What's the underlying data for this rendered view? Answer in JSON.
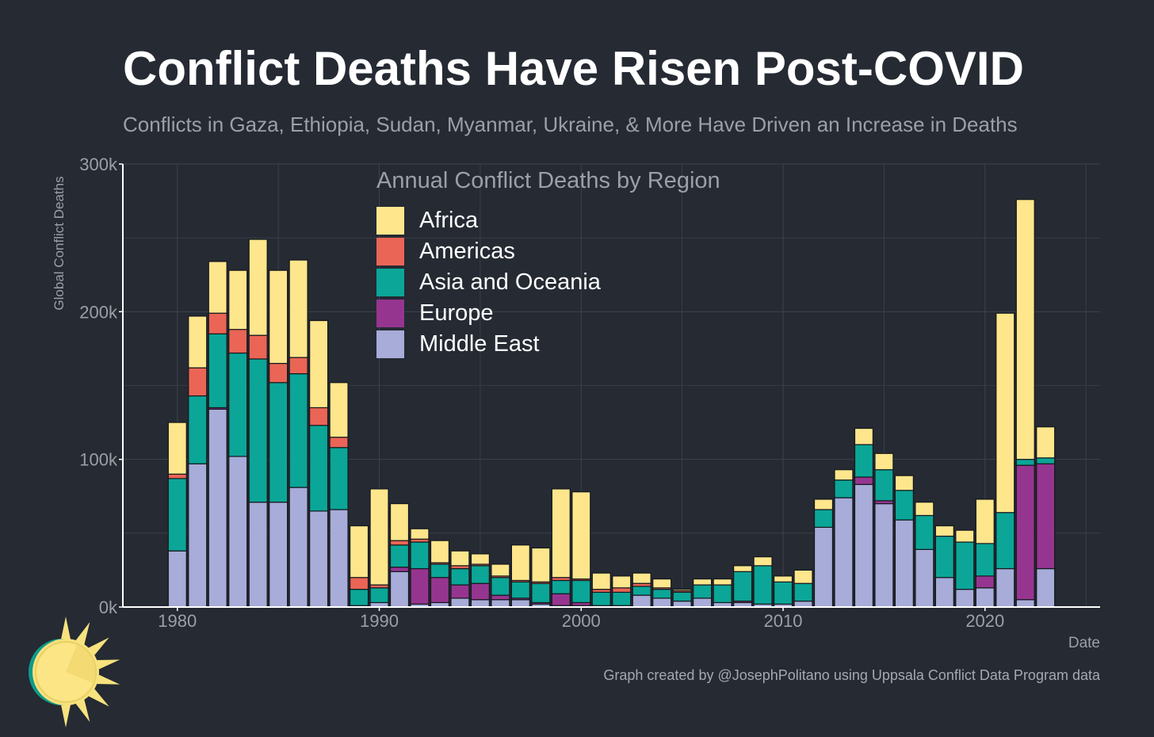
{
  "title": "Conflict Deaths Have Risen Post-COVID",
  "subtitle": "Conflicts in Gaza, Ethiopia, Sudan, Myanmar, Ukraine, & More Have Driven an Increase in Deaths",
  "credit": "Graph created by @JosephPolitano using Uppsala Conflict Data Program data",
  "colors": {
    "background": "#252a33",
    "grid": "#3d434d",
    "axis": "#ffffff",
    "tick_text": "#9ba0a8",
    "bar_outline": "#15181d",
    "logo_sun": "#f7e27e",
    "logo_ring": "#0e9b8a"
  },
  "logo_icon": "sun-icon",
  "chart_data": {
    "type": "bar",
    "stacked": true,
    "title": "Annual Conflict Deaths by Region",
    "xlabel": "Date",
    "ylabel": "Global Conflict Deaths",
    "xlim": [
      1977.3,
      2025.7
    ],
    "ylim": [
      0,
      300000
    ],
    "xticks": [
      1980,
      1990,
      2000,
      2010,
      2020
    ],
    "yticks": [
      0,
      100000,
      200000,
      300000
    ],
    "ytick_labels": [
      "0k",
      "100k",
      "200k",
      "300k"
    ],
    "grid": true,
    "legend_position": "top-center",
    "years": [
      1980,
      1981,
      1982,
      1983,
      1984,
      1985,
      1986,
      1987,
      1988,
      1989,
      1990,
      1991,
      1992,
      1993,
      1994,
      1995,
      1996,
      1997,
      1998,
      1999,
      2000,
      2001,
      2002,
      2003,
      2004,
      2005,
      2006,
      2007,
      2008,
      2009,
      2010,
      2011,
      2012,
      2013,
      2014,
      2015,
      2016,
      2017,
      2018,
      2019,
      2020,
      2021,
      2022,
      2023
    ],
    "series": [
      {
        "name": "Middle East",
        "color": "#a7acd8",
        "values": [
          38000,
          97000,
          134000,
          102000,
          71000,
          71000,
          81000,
          65000,
          66000,
          1000,
          3000,
          24000,
          2000,
          3000,
          6000,
          5000,
          5000,
          5000,
          2000,
          1000,
          1000,
          1000,
          1000,
          8000,
          6000,
          4000,
          6000,
          3000,
          3000,
          2000,
          2000,
          4000,
          54000,
          74000,
          83000,
          70000,
          59000,
          39000,
          20000,
          12000,
          13000,
          26000,
          5000,
          26000
        ]
      },
      {
        "name": "Europe",
        "color": "#963590",
        "values": [
          0,
          0,
          1000,
          0,
          0,
          0,
          0,
          0,
          0,
          0,
          0,
          3000,
          24000,
          17000,
          9000,
          11000,
          3000,
          1000,
          1000,
          8000,
          2000,
          0,
          0,
          0,
          0,
          0,
          0,
          0,
          1000,
          0,
          0,
          0,
          0,
          0,
          5000,
          2000,
          0,
          0,
          0,
          0,
          8000,
          0,
          91000,
          71000
        ]
      },
      {
        "name": "Asia and Oceania",
        "color": "#0ba697",
        "values": [
          49000,
          46000,
          50000,
          70000,
          97000,
          81000,
          77000,
          58000,
          42000,
          11000,
          10000,
          15000,
          18000,
          9000,
          11000,
          12000,
          12000,
          11000,
          13000,
          9000,
          15000,
          9000,
          9000,
          6000,
          6000,
          6000,
          9000,
          12000,
          20000,
          26000,
          15000,
          12000,
          12000,
          12000,
          22000,
          21000,
          20000,
          23000,
          28000,
          32000,
          22000,
          38000,
          4000,
          4000
        ]
      },
      {
        "name": "Americas",
        "color": "#ea6556",
        "values": [
          3000,
          19000,
          14000,
          16000,
          16000,
          13000,
          11000,
          12000,
          7000,
          8000,
          2000,
          3000,
          2000,
          1000,
          2000,
          1000,
          1000,
          1000,
          1000,
          2000,
          1000,
          2000,
          3000,
          2000,
          1000,
          1000,
          0,
          0,
          0,
          0,
          0,
          0,
          0,
          0,
          0,
          0,
          0,
          0,
          0,
          0,
          0,
          0,
          0,
          0
        ]
      },
      {
        "name": "Africa",
        "color": "#fee68c",
        "values": [
          35000,
          35000,
          35000,
          40000,
          65000,
          63000,
          66000,
          59000,
          37000,
          35000,
          65000,
          25000,
          7000,
          15000,
          10000,
          7000,
          8000,
          24000,
          23000,
          60000,
          59000,
          11000,
          8000,
          7000,
          6000,
          1000,
          4000,
          4000,
          4000,
          6000,
          4000,
          9000,
          7000,
          7000,
          11000,
          11000,
          10000,
          9000,
          7000,
          8000,
          30000,
          135000,
          176000,
          21000
        ]
      }
    ],
    "legend_order": [
      "Africa",
      "Americas",
      "Asia and Oceania",
      "Europe",
      "Middle East"
    ]
  }
}
